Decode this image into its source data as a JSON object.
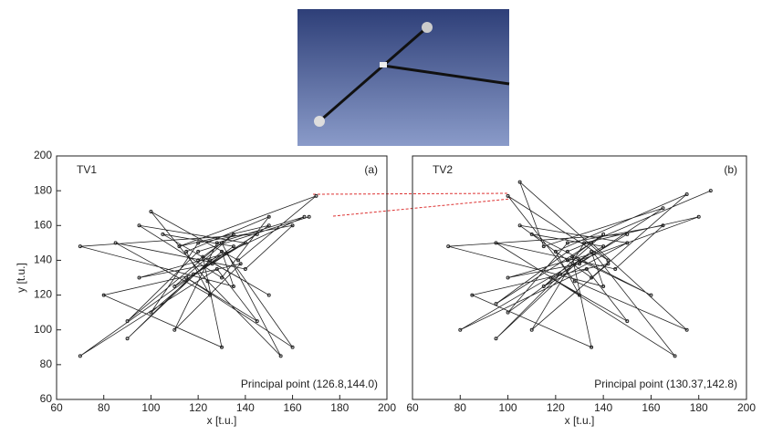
{
  "chart_data": [
    {
      "type": "line",
      "title": "TV1",
      "panel_label": "(a)",
      "annotation": "Principal point (126.8,144.0)",
      "xlabel": "x [t.u.]",
      "ylabel": "y [t.u.]",
      "color": "#222222",
      "xlim": [
        60,
        200
      ],
      "ylim": [
        60,
        200
      ],
      "xticks": [
        60,
        80,
        100,
        120,
        140,
        160,
        180,
        200
      ],
      "yticks": [
        60,
        80,
        100,
        120,
        140,
        160,
        180,
        200
      ],
      "x": [
        120,
        135,
        110,
        140,
        95,
        130,
        150,
        115,
        125,
        85,
        140,
        160,
        120,
        100,
        130,
        135,
        70,
        145,
        118,
        90,
        125,
        165,
        128,
        110,
        138,
        80,
        130,
        122,
        150,
        105,
        135,
        70,
        128,
        145,
        115,
        160,
        132,
        95,
        126,
        150,
        112,
        170,
        137,
        100,
        124,
        155,
        130,
        90,
        120,
        167
      ],
      "values": [
        140,
        155,
        125,
        150,
        160,
        130,
        165,
        145,
        120,
        150,
        135,
        160,
        150,
        110,
        145,
        125,
        148,
        155,
        132,
        95,
        140,
        165,
        150,
        100,
        138,
        120,
        90,
        142,
        120,
        155,
        148,
        85,
        135,
        105,
        130,
        90,
        144,
        130,
        138,
        160,
        148,
        177,
        140,
        168,
        128,
        85,
        150,
        105,
        145,
        165
      ]
    },
    {
      "type": "line",
      "title": "TV2",
      "panel_label": "(b)",
      "annotation": "Principal point (130.37,142.8)",
      "xlabel": "x [t.u.]",
      "color": "#222222",
      "xlim": [
        60,
        200
      ],
      "ylim": [
        60,
        200
      ],
      "xticks": [
        60,
        80,
        100,
        120,
        140,
        160,
        180,
        200
      ],
      "x": [
        125,
        140,
        115,
        150,
        105,
        135,
        175,
        120,
        130,
        95,
        145,
        165,
        125,
        100,
        135,
        140,
        75,
        150,
        122,
        95,
        130,
        180,
        132,
        110,
        142,
        85,
        135,
        127,
        160,
        110,
        140,
        80,
        133,
        150,
        118,
        170,
        136,
        100,
        130,
        165,
        115,
        105,
        142,
        100,
        128,
        175,
        135,
        95,
        125,
        185
      ],
      "values": [
        140,
        155,
        125,
        150,
        160,
        130,
        178,
        145,
        120,
        150,
        135,
        160,
        150,
        110,
        145,
        125,
        148,
        155,
        132,
        95,
        140,
        165,
        150,
        100,
        138,
        120,
        90,
        142,
        120,
        155,
        148,
        100,
        135,
        105,
        130,
        85,
        144,
        130,
        138,
        170,
        148,
        185,
        140,
        177,
        128,
        100,
        150,
        115,
        145,
        180
      ]
    }
  ]
}
